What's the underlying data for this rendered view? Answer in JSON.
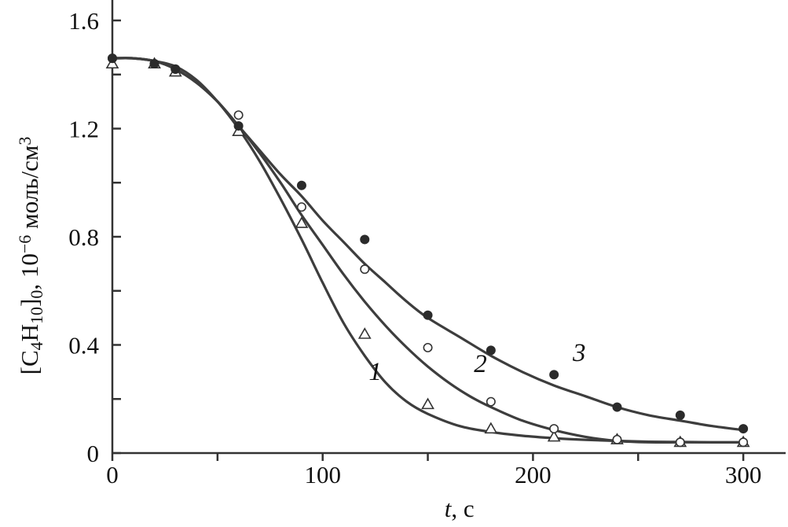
{
  "chart_data": {
    "type": "line",
    "xlabel_var": "t",
    "xlabel_unit": ", с",
    "ylabel": "[C4H10]0, 10−6 моль/см3",
    "xlim": [
      0,
      320
    ],
    "ylim": [
      0,
      1.6
    ],
    "x_ticks": [
      0,
      100,
      200,
      300
    ],
    "y_ticks": [
      0,
      0.4,
      0.8,
      1.2,
      1.6
    ],
    "y_tick_labels": [
      "0",
      "0.4",
      "0.8",
      "1.2",
      "1.6"
    ],
    "grid": false,
    "series": [
      {
        "name": "1",
        "marker": "open-triangle",
        "points": {
          "x": [
            0,
            20,
            30,
            60,
            90,
            120,
            150,
            180,
            210,
            240,
            270,
            300
          ],
          "y": [
            1.44,
            1.44,
            1.41,
            1.19,
            0.85,
            0.44,
            0.18,
            0.09,
            0.06,
            0.05,
            0.04,
            0.04
          ]
        },
        "curve": {
          "x": [
            0,
            10,
            20,
            30,
            40,
            50,
            60,
            70,
            80,
            90,
            100,
            110,
            120,
            130,
            140,
            150,
            165,
            180,
            195,
            210,
            225,
            240,
            255,
            270,
            285,
            300
          ],
          "y": [
            1.46,
            1.46,
            1.45,
            1.43,
            1.38,
            1.3,
            1.2,
            1.08,
            0.94,
            0.79,
            0.63,
            0.48,
            0.36,
            0.26,
            0.19,
            0.145,
            0.1,
            0.078,
            0.064,
            0.055,
            0.049,
            0.045,
            0.042,
            0.041,
            0.04,
            0.04
          ]
        }
      },
      {
        "name": "2",
        "marker": "open-circle",
        "points": {
          "x": [
            0,
            20,
            30,
            60,
            90,
            120,
            150,
            180,
            210,
            240,
            270,
            300
          ],
          "y": [
            1.46,
            1.44,
            1.42,
            1.25,
            0.91,
            0.68,
            0.39,
            0.19,
            0.09,
            0.05,
            0.04,
            0.04
          ]
        },
        "curve": {
          "x": [
            0,
            10,
            20,
            30,
            40,
            50,
            60,
            70,
            80,
            90,
            100,
            110,
            120,
            130,
            140,
            150,
            160,
            170,
            180,
            195,
            210,
            225,
            240,
            255,
            270,
            285,
            300
          ],
          "y": [
            1.46,
            1.46,
            1.45,
            1.42,
            1.37,
            1.3,
            1.21,
            1.11,
            1.0,
            0.88,
            0.77,
            0.66,
            0.56,
            0.47,
            0.39,
            0.32,
            0.26,
            0.21,
            0.17,
            0.12,
            0.085,
            0.06,
            0.045,
            0.04,
            0.04,
            0.04,
            0.04
          ]
        }
      },
      {
        "name": "3",
        "marker": "filled-circle",
        "points": {
          "x": [
            0,
            20,
            30,
            60,
            90,
            120,
            150,
            180,
            210,
            240,
            270,
            300
          ],
          "y": [
            1.46,
            1.44,
            1.42,
            1.21,
            0.99,
            0.79,
            0.51,
            0.38,
            0.29,
            0.17,
            0.14,
            0.09
          ]
        },
        "curve": {
          "x": [
            0,
            10,
            20,
            30,
            40,
            50,
            60,
            70,
            80,
            90,
            100,
            110,
            120,
            130,
            140,
            150,
            165,
            180,
            195,
            210,
            225,
            240,
            255,
            270,
            285,
            300
          ],
          "y": [
            1.46,
            1.46,
            1.45,
            1.42,
            1.37,
            1.3,
            1.21,
            1.12,
            1.03,
            0.95,
            0.86,
            0.78,
            0.7,
            0.63,
            0.56,
            0.5,
            0.43,
            0.36,
            0.3,
            0.25,
            0.21,
            0.17,
            0.14,
            0.12,
            0.1,
            0.085
          ]
        }
      }
    ],
    "curve_labels": [
      {
        "text": "1",
        "x": 125,
        "y": 0.27
      },
      {
        "text": "2",
        "x": 175,
        "y": 0.3
      },
      {
        "text": "3",
        "x": 222,
        "y": 0.34
      }
    ]
  }
}
